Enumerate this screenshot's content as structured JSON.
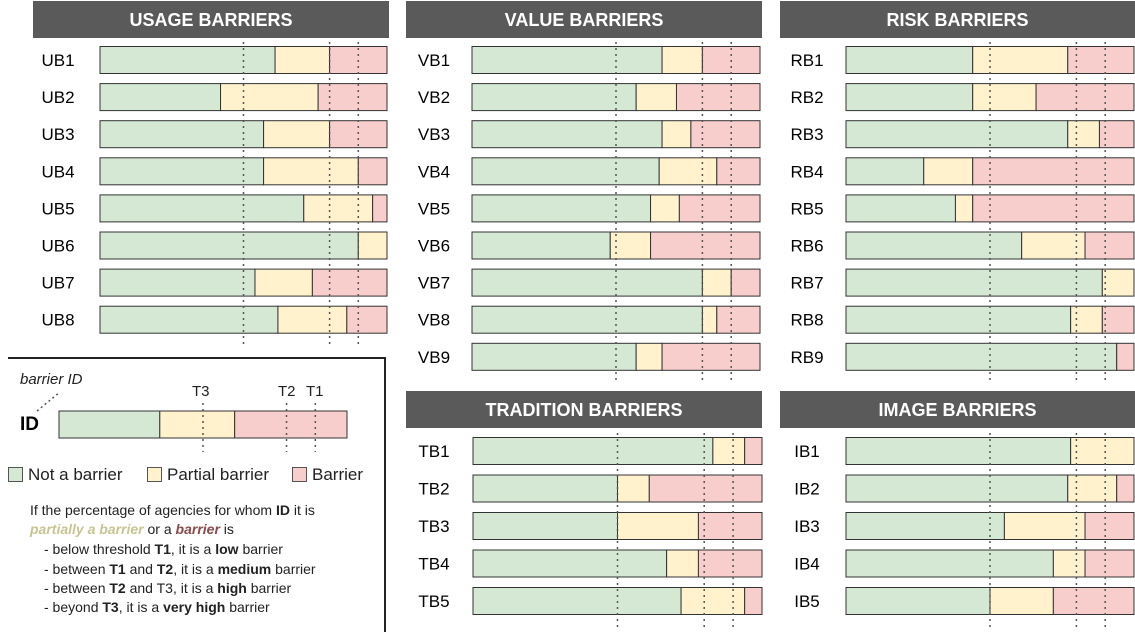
{
  "colors": {
    "not": "#d5e8d4",
    "partial": "#fff2cc",
    "barrier": "#f8cecc",
    "header": "#5a5a5a",
    "border": "#333333"
  },
  "chart_data": {
    "type": "stacked-bar",
    "segments": [
      "Not a barrier",
      "Partial barrier",
      "Barrier"
    ],
    "panels": [
      {
        "title": "USAGE BARRIERS",
        "thresholds": {
          "T3": 50,
          "T2": 80,
          "T1": 90
        },
        "rows": [
          {
            "id": "UB1",
            "not": 61,
            "partial": 19,
            "barrier": 20
          },
          {
            "id": "UB2",
            "not": 42,
            "partial": 34,
            "barrier": 24
          },
          {
            "id": "UB3",
            "not": 57,
            "partial": 23,
            "barrier": 20
          },
          {
            "id": "UB4",
            "not": 57,
            "partial": 33,
            "barrier": 10
          },
          {
            "id": "UB5",
            "not": 71,
            "partial": 24,
            "barrier": 5
          },
          {
            "id": "UB6",
            "not": 90,
            "partial": 10,
            "barrier": 0
          },
          {
            "id": "UB7",
            "not": 54,
            "partial": 20,
            "barrier": 26
          },
          {
            "id": "UB8",
            "not": 62,
            "partial": 24,
            "barrier": 14
          }
        ]
      },
      {
        "title": "VALUE BARRIERS",
        "thresholds": {
          "T3": 50,
          "T2": 80,
          "T1": 90
        },
        "rows": [
          {
            "id": "VB1",
            "not": 66,
            "partial": 14,
            "barrier": 20
          },
          {
            "id": "VB2",
            "not": 57,
            "partial": 14,
            "barrier": 29
          },
          {
            "id": "VB3",
            "not": 66,
            "partial": 10,
            "barrier": 24
          },
          {
            "id": "VB4",
            "not": 65,
            "partial": 20,
            "barrier": 15
          },
          {
            "id": "VB5",
            "not": 62,
            "partial": 10,
            "barrier": 28
          },
          {
            "id": "VB6",
            "not": 48,
            "partial": 14,
            "barrier": 38
          },
          {
            "id": "VB7",
            "not": 80,
            "partial": 10,
            "barrier": 10
          },
          {
            "id": "VB8",
            "not": 80,
            "partial": 5,
            "barrier": 15
          },
          {
            "id": "VB9",
            "not": 57,
            "partial": 9,
            "barrier": 34
          }
        ]
      },
      {
        "title": "RISK BARRIERS",
        "thresholds": {
          "T3": 50,
          "T2": 80,
          "T1": 90
        },
        "rows": [
          {
            "id": "RB1",
            "not": 44,
            "partial": 33,
            "barrier": 23
          },
          {
            "id": "RB2",
            "not": 44,
            "partial": 22,
            "barrier": 34
          },
          {
            "id": "RB3",
            "not": 77,
            "partial": 11,
            "barrier": 12
          },
          {
            "id": "RB4",
            "not": 27,
            "partial": 17,
            "barrier": 56
          },
          {
            "id": "RB5",
            "not": 38,
            "partial": 6,
            "barrier": 56
          },
          {
            "id": "RB6",
            "not": 61,
            "partial": 22,
            "barrier": 17
          },
          {
            "id": "RB7",
            "not": 89,
            "partial": 11,
            "barrier": 0
          },
          {
            "id": "RB8",
            "not": 78,
            "partial": 11,
            "barrier": 11
          },
          {
            "id": "RB9",
            "not": 94,
            "partial": 0,
            "barrier": 6
          }
        ]
      },
      {
        "title": "TRADITION BARRIERS",
        "thresholds": {
          "T3": 50,
          "T2": 80,
          "T1": 90
        },
        "rows": [
          {
            "id": "TB1",
            "not": 83,
            "partial": 11,
            "barrier": 6
          },
          {
            "id": "TB2",
            "not": 50,
            "partial": 11,
            "barrier": 39
          },
          {
            "id": "TB3",
            "not": 50,
            "partial": 28,
            "barrier": 22
          },
          {
            "id": "TB4",
            "not": 67,
            "partial": 11,
            "barrier": 22
          },
          {
            "id": "TB5",
            "not": 72,
            "partial": 22,
            "barrier": 6
          }
        ]
      },
      {
        "title": "IMAGE BARRIERS",
        "thresholds": {
          "T3": 50,
          "T2": 80,
          "T1": 90
        },
        "rows": [
          {
            "id": "IB1",
            "not": 78,
            "partial": 22,
            "barrier": 0
          },
          {
            "id": "IB2",
            "not": 77,
            "partial": 17,
            "barrier": 6
          },
          {
            "id": "IB3",
            "not": 55,
            "partial": 28,
            "barrier": 17
          },
          {
            "id": "IB4",
            "not": 72,
            "partial": 11,
            "barrier": 17
          },
          {
            "id": "IB5",
            "not": 50,
            "partial": 22,
            "barrier": 28
          }
        ]
      }
    ],
    "example": {
      "id": "ID",
      "not": 35,
      "partial": 26,
      "barrier": 39,
      "thresholds": {
        "T3": 50,
        "T2": 79,
        "T1": 89
      }
    }
  },
  "legend": {
    "barrier_id_label": "barrier ID",
    "id_label": "ID",
    "t3": "T3",
    "t2": "T2",
    "t1": "T1",
    "not_a_barrier": "Not a barrier",
    "partial_barrier": "Partial barrier",
    "barrier": "Barrier",
    "intro_1": "If the percentage of agencies for whom",
    "intro_id": "ID",
    "intro_2": "it is",
    "partially": "partially a barrier",
    "or_a": "or a",
    "barrier_word": "barrier",
    "is": "is",
    "below_pre": "- below threshold",
    "below_t": "T1",
    "below_mid": ", it is a",
    "below_level": "low",
    "below_post": "barrier",
    "between1_pre": "- between",
    "between1_t1": "T1",
    "between1_and": "and",
    "between1_t2": "T2",
    "between1_mid": ", it is a",
    "between1_level": "medium",
    "between1_post": "barrier",
    "between2_pre": "- between",
    "between2_t1": "T2",
    "between2_rest": "and T3, it is a",
    "between2_level": "high",
    "between2_post": "barrier",
    "beyond_pre": "- beyond",
    "beyond_t": "T3",
    "beyond_mid": ", it is a",
    "beyond_level": "very high",
    "beyond_post": "barrier"
  }
}
